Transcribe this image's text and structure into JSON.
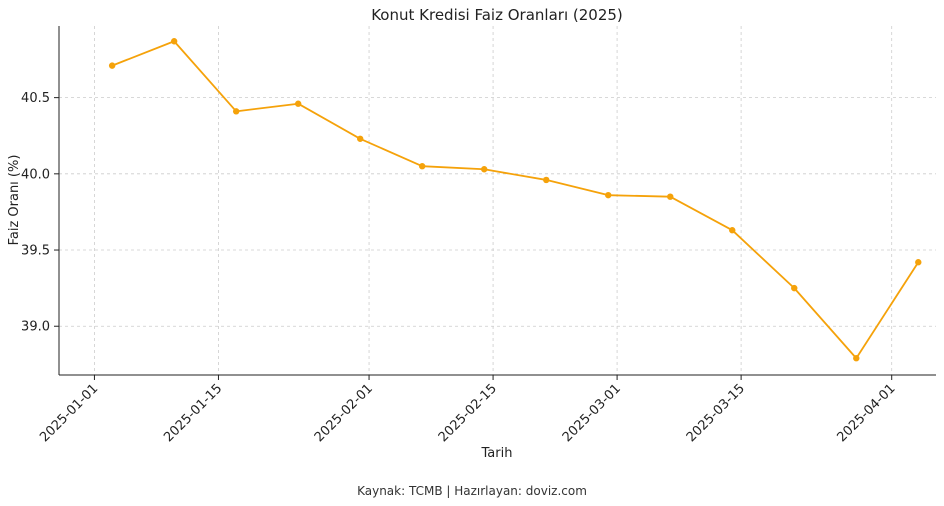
{
  "chart_data": {
    "type": "line",
    "title": "Konut Kredisi Faiz Oranları (2025)",
    "xlabel": "Tarih",
    "ylabel": "Faiz Oranı (%)",
    "xlim": [
      "2024-12-28",
      "2025-04-06"
    ],
    "ylim": [
      38.68,
      40.97
    ],
    "x_ticks": [
      "2025-01-01",
      "2025-01-15",
      "2025-02-01",
      "2025-02-15",
      "2025-03-01",
      "2025-03-15",
      "2025-04-01"
    ],
    "y_ticks": [
      39.0,
      39.5,
      40.0,
      40.5
    ],
    "y_tick_labels": [
      "39.0",
      "39.5",
      "40.0",
      "40.5"
    ],
    "grid": true,
    "color": "#f5a20a",
    "series": [
      {
        "x": [
          "2025-01-03",
          "2025-01-10",
          "2025-01-17",
          "2025-01-24",
          "2025-01-31",
          "2025-02-07",
          "2025-02-14",
          "2025-02-21",
          "2025-02-28",
          "2025-03-07",
          "2025-03-14",
          "2025-03-21",
          "2025-03-28",
          "2025-04-04"
        ],
        "values": [
          40.71,
          40.87,
          40.41,
          40.46,
          40.23,
          40.05,
          40.03,
          39.96,
          39.86,
          39.85,
          39.63,
          39.25,
          38.79,
          39.42
        ]
      }
    ]
  },
  "footer": "Kaynak: TCMB | Hazırlayan: doviz.com"
}
